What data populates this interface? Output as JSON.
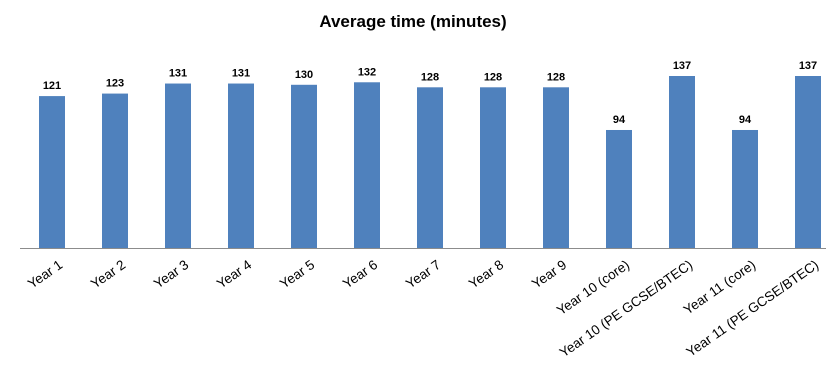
{
  "chart_data": {
    "type": "bar",
    "title": "Average time (minutes)",
    "xlabel": "",
    "ylabel": "",
    "categories": [
      "Year 1",
      "Year 2",
      "Year 3",
      "Year 4",
      "Year 5",
      "Year 6",
      "Year 7",
      "Year 8",
      "Year 9",
      "Year 10 (core)",
      "Year 10 (PE GCSE/BTEC)",
      "Year 11 (core)",
      "Year 11 (PE GCSE/BTEC)"
    ],
    "values": [
      121,
      123,
      131,
      131,
      130,
      132,
      128,
      128,
      128,
      94,
      137,
      94,
      137
    ],
    "ylim": [
      0,
      137
    ],
    "grid": false,
    "legend": "none",
    "colors": {
      "bar": "#4f81bd",
      "axis": "#8c8c8c"
    }
  }
}
